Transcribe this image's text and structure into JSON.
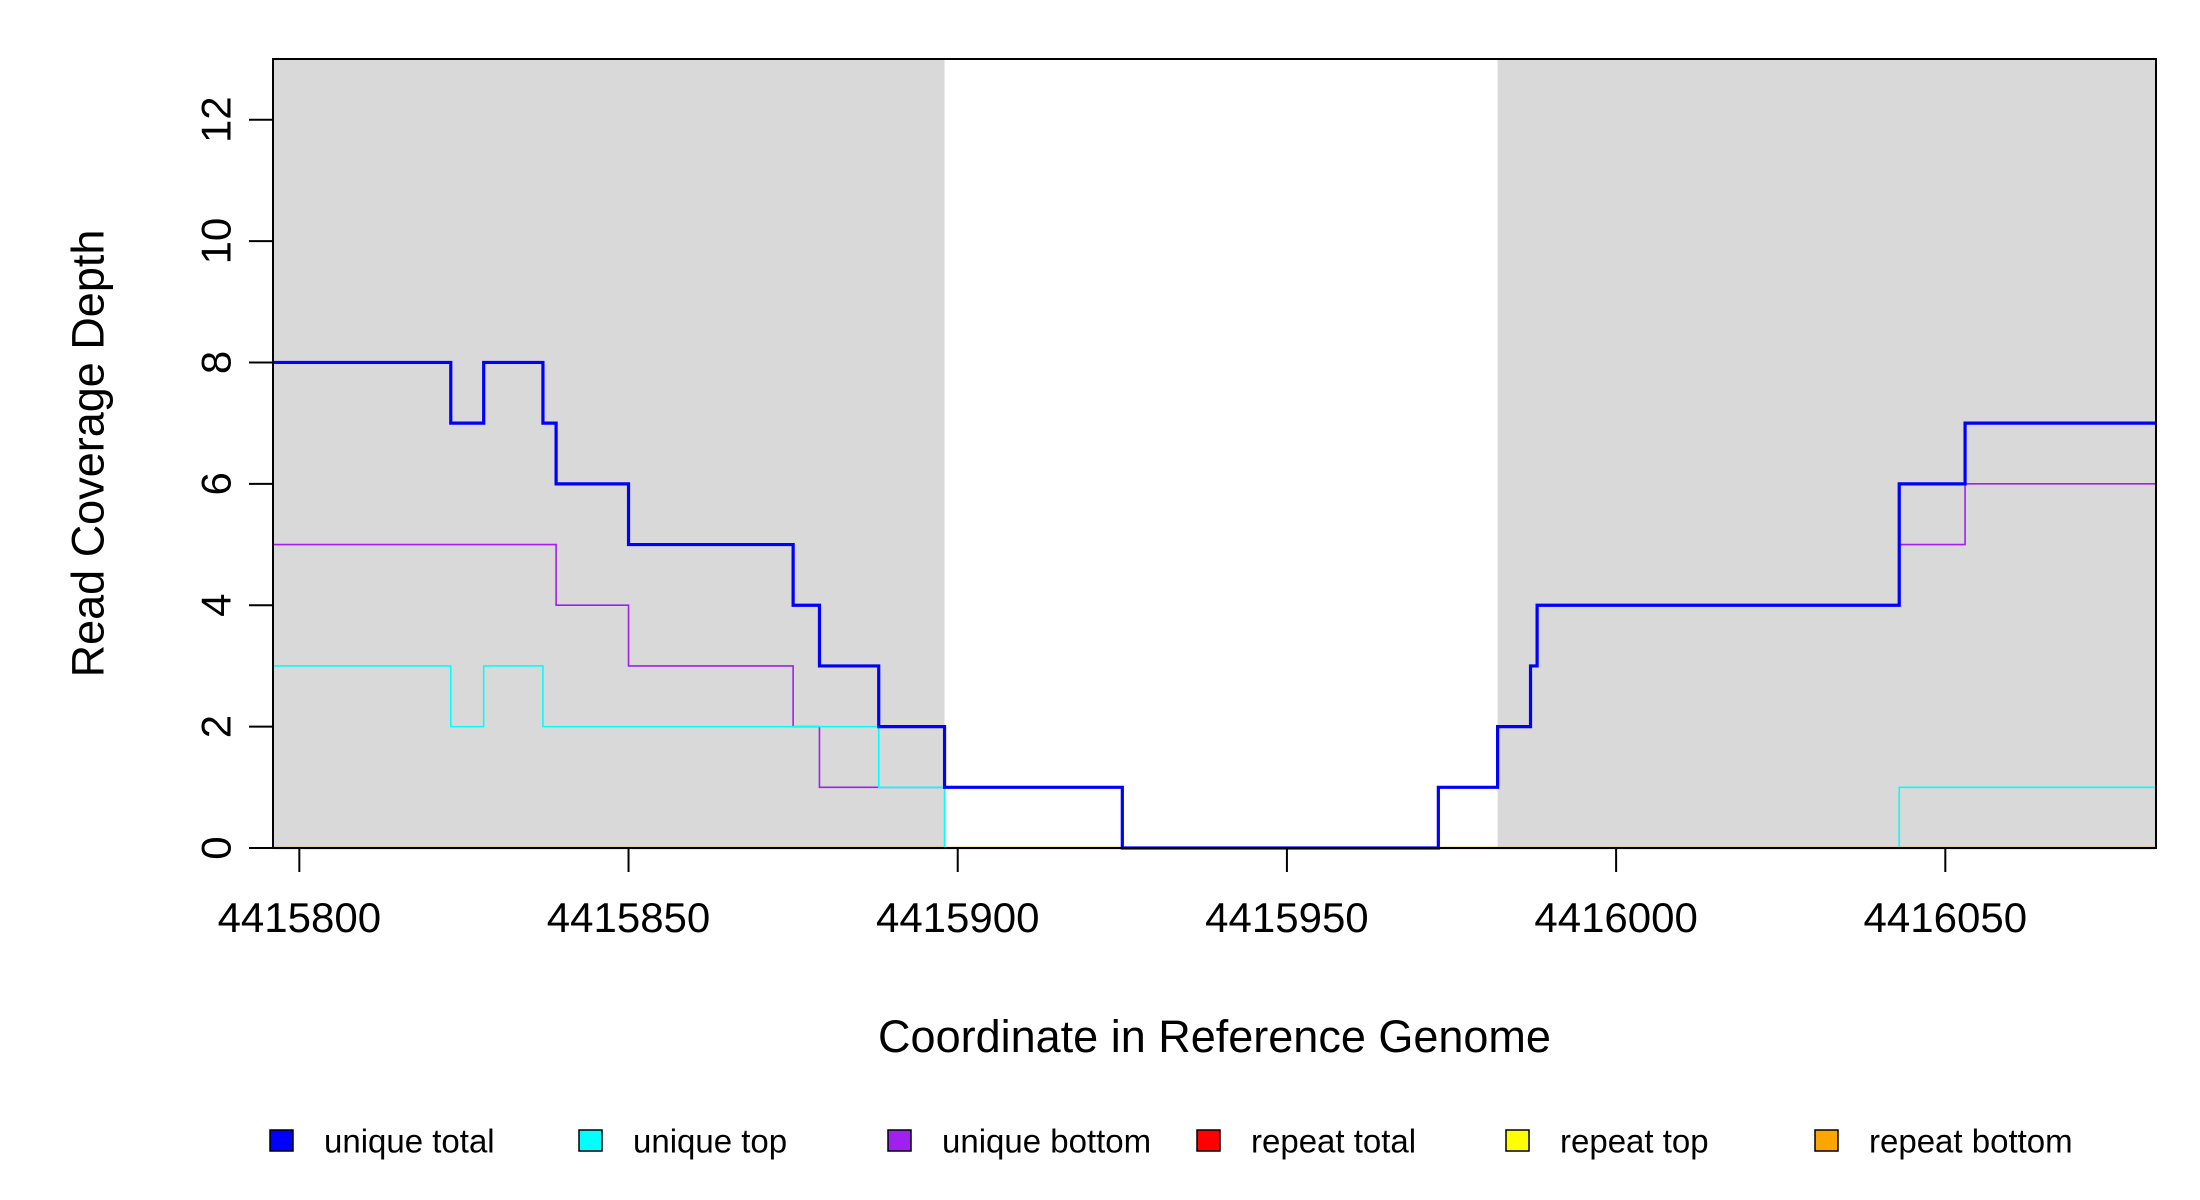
{
  "chart_data": {
    "type": "line",
    "title": "",
    "xlabel": "Coordinate in Reference Genome",
    "ylabel": "Read Coverage Depth",
    "xlim": [
      4415796,
      4416082
    ],
    "ylim": [
      0,
      13
    ],
    "x_ticks": [
      4415800,
      4415850,
      4415900,
      4415950,
      4416000,
      4416050
    ],
    "x_tick_labels": [
      "4415800",
      "4415850",
      "4415900",
      "4415950",
      "4416000",
      "4416050"
    ],
    "y_ticks": [
      0,
      2,
      4,
      6,
      8,
      10,
      12
    ],
    "y_tick_labels": [
      "0",
      "2",
      "4",
      "6",
      "8",
      "10",
      "12"
    ],
    "shaded_regions": [
      {
        "x_start": 4415796,
        "x_end": 4415898,
        "color": "#d9d9d9"
      },
      {
        "x_start": 4415982,
        "x_end": 4416082,
        "color": "#d9d9d9"
      }
    ],
    "legend_position": "bottom",
    "series": [
      {
        "name": "unique total",
        "color": "#0000ff",
        "steps": [
          [
            4415796,
            8
          ],
          [
            4415823,
            7
          ],
          [
            4415828,
            8
          ],
          [
            4415837,
            7
          ],
          [
            4415839,
            6
          ],
          [
            4415850,
            5
          ],
          [
            4415875,
            4
          ],
          [
            4415879,
            3
          ],
          [
            4415888,
            2
          ],
          [
            4415898,
            1
          ],
          [
            4415925,
            0
          ],
          [
            4415973,
            1
          ],
          [
            4415982,
            2
          ],
          [
            4415987,
            3
          ],
          [
            4415988,
            4
          ],
          [
            4416043,
            6
          ],
          [
            4416053,
            7
          ],
          [
            4416082,
            7
          ]
        ]
      },
      {
        "name": "unique top",
        "color": "#00ffff",
        "steps": [
          [
            4415796,
            3
          ],
          [
            4415823,
            2
          ],
          [
            4415828,
            3
          ],
          [
            4415837,
            2
          ],
          [
            4415888,
            1
          ],
          [
            4415898,
            0
          ],
          [
            4416043,
            1
          ],
          [
            4416082,
            1
          ]
        ]
      },
      {
        "name": "unique bottom",
        "color": "#a020f0",
        "steps": [
          [
            4415796,
            5
          ],
          [
            4415839,
            4
          ],
          [
            4415850,
            3
          ],
          [
            4415875,
            2
          ],
          [
            4415879,
            1
          ],
          [
            4415925,
            0
          ],
          [
            4415973,
            1
          ],
          [
            4415982,
            2
          ],
          [
            4415987,
            3
          ],
          [
            4415988,
            4
          ],
          [
            4416043,
            5
          ],
          [
            4416053,
            6
          ],
          [
            4416082,
            6
          ]
        ]
      },
      {
        "name": "repeat total",
        "color": "#ff0000",
        "steps": [
          [
            4415796,
            0
          ],
          [
            4416082,
            0
          ]
        ]
      },
      {
        "name": "repeat top",
        "color": "#ffff00",
        "steps": [
          [
            4415796,
            0
          ],
          [
            4416082,
            0
          ]
        ]
      },
      {
        "name": "repeat bottom",
        "color": "#ffa500",
        "steps": [
          [
            4415796,
            0
          ],
          [
            4416082,
            0
          ]
        ]
      }
    ]
  }
}
